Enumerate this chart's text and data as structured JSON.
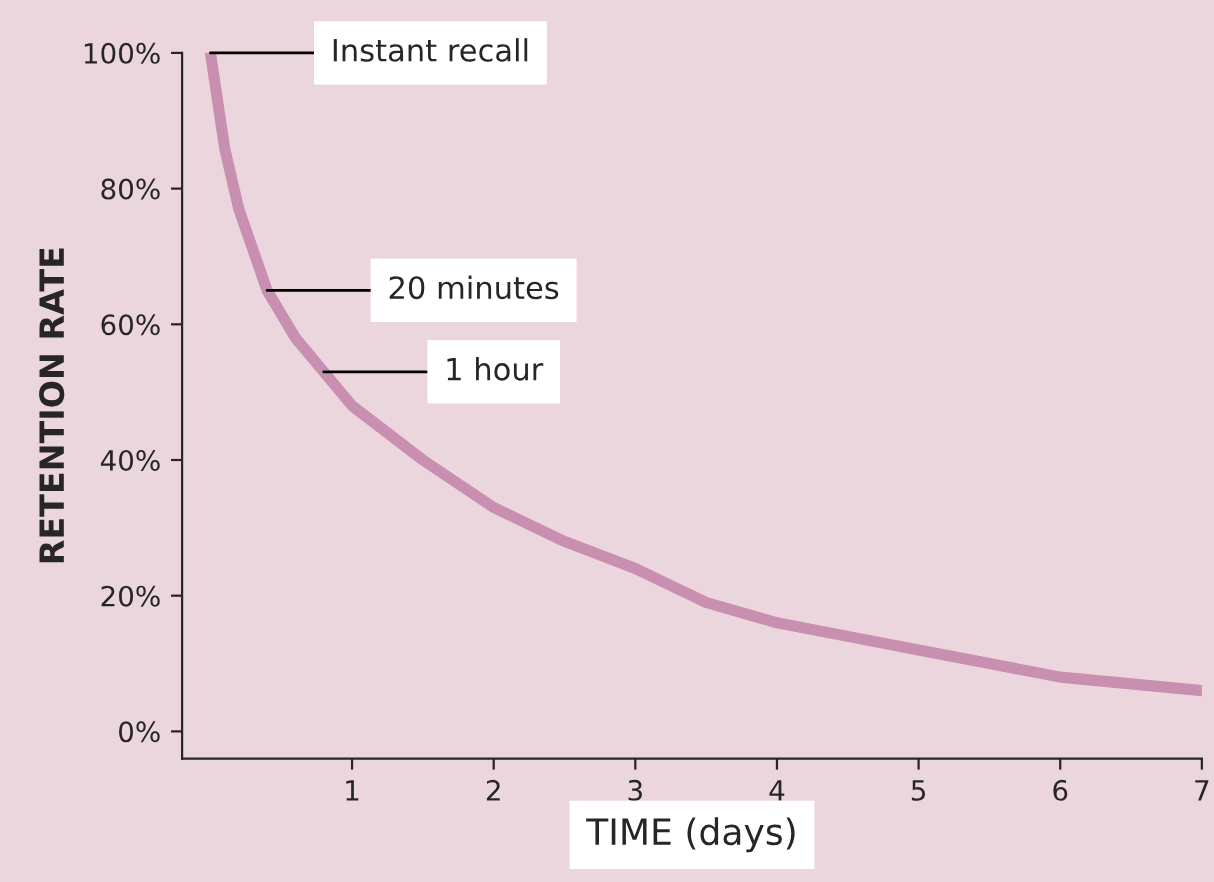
{
  "chart_data": {
    "type": "line",
    "xlabel": "TIME (days)",
    "ylabel": "RETENTION RATE",
    "x": [
      0,
      0.1,
      0.2,
      0.4,
      0.6,
      0.8,
      1.0,
      1.5,
      2,
      2.5,
      3,
      3.5,
      4,
      4.5,
      5,
      5.5,
      6,
      6.5,
      7
    ],
    "series": [
      {
        "color": "#c98fb0",
        "values": [
          100,
          86,
          77,
          65,
          58,
          53,
          48,
          40,
          33,
          28,
          24,
          19,
          16,
          14,
          12,
          10,
          8,
          7,
          6
        ]
      }
    ],
    "xlim": [
      -0.2,
      7
    ],
    "xticks": [
      1,
      2,
      3,
      4,
      5,
      6,
      7
    ],
    "ylim": [
      -4,
      100
    ],
    "yticks": [
      {
        "value": 0,
        "label": "0%"
      },
      {
        "value": 20,
        "label": "20%"
      },
      {
        "value": 40,
        "label": "40%"
      },
      {
        "value": 60,
        "label": "60%"
      },
      {
        "value": 80,
        "label": "80%"
      },
      {
        "value": 100,
        "label": "100%"
      }
    ],
    "annotations": [
      {
        "text": "Instant recall",
        "x": 0,
        "y": 100
      },
      {
        "text": "20 minutes",
        "x": 0.4,
        "y": 65
      },
      {
        "text": "1 hour",
        "x": 0.8,
        "y": 53
      }
    ],
    "grid": false,
    "legend": false,
    "marker": "none",
    "line_style": "solid"
  }
}
